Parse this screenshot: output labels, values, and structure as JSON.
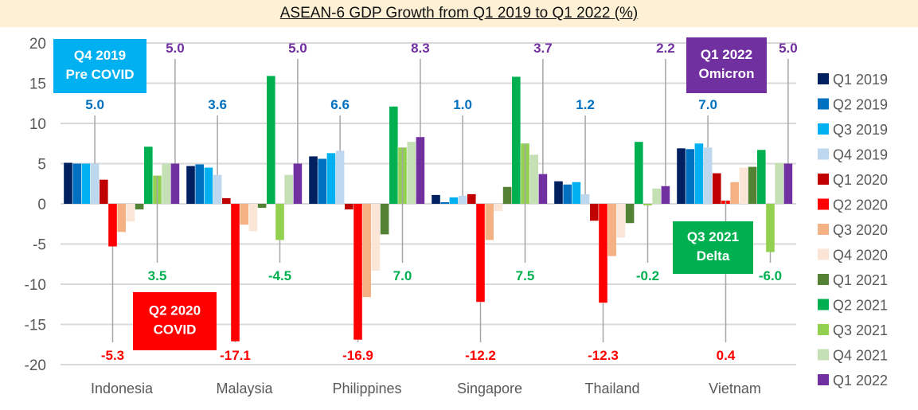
{
  "chart_data": {
    "type": "bar",
    "title": "ASEAN-6 GDP Growth from Q1 2019 to Q1 2022 (%)",
    "xlabel": "",
    "ylabel": "",
    "ylim": [
      -20,
      20
    ],
    "yticks": [
      20,
      15,
      10,
      5,
      0,
      -5,
      -10,
      -15,
      -20
    ],
    "grid": true,
    "legend_position": "right",
    "categories": [
      "Indonesia",
      "Malaysia",
      "Philippines",
      "Singapore",
      "Thailand",
      "Vietnam"
    ],
    "series": [
      {
        "name": "Q1 2019",
        "color": "#002060",
        "values": [
          5.1,
          4.7,
          5.9,
          1.1,
          2.8,
          6.9
        ]
      },
      {
        "name": "Q2 2019",
        "color": "#0070c0",
        "values": [
          5.0,
          4.9,
          5.6,
          0.2,
          2.4,
          6.8
        ]
      },
      {
        "name": "Q3 2019",
        "color": "#00b0f0",
        "values": [
          5.0,
          4.5,
          6.3,
          0.8,
          2.7,
          7.5
        ]
      },
      {
        "name": "Q4 2019",
        "color": "#bdd7ee",
        "values": [
          5.0,
          3.6,
          6.6,
          1.0,
          1.2,
          7.0
        ]
      },
      {
        "name": "Q1 2020",
        "color": "#c00000",
        "values": [
          3.0,
          0.7,
          -0.7,
          1.2,
          -2.1,
          3.8
        ]
      },
      {
        "name": "Q2 2020",
        "color": "#ff0000",
        "values": [
          -5.3,
          -17.1,
          -16.9,
          -12.2,
          -12.3,
          0.4
        ]
      },
      {
        "name": "Q3 2020",
        "color": "#f4b183",
        "values": [
          -3.5,
          -2.6,
          -11.6,
          -4.5,
          -6.5,
          2.7
        ]
      },
      {
        "name": "Q4 2020",
        "color": "#fbe5d6",
        "values": [
          -2.2,
          -3.4,
          -8.3,
          -0.9,
          -4.2,
          4.5
        ]
      },
      {
        "name": "Q1 2021",
        "color": "#548235",
        "values": [
          -0.7,
          -0.5,
          -3.8,
          2.1,
          -2.4,
          4.6
        ]
      },
      {
        "name": "Q2 2021",
        "color": "#00b050",
        "values": [
          7.1,
          15.9,
          12.1,
          15.8,
          7.7,
          6.7
        ]
      },
      {
        "name": "Q3 2021",
        "color": "#92d050",
        "values": [
          3.5,
          -4.5,
          7.0,
          7.5,
          -0.2,
          -6.0
        ]
      },
      {
        "name": "Q4 2021",
        "color": "#c5e0b4",
        "values": [
          5.0,
          3.6,
          7.7,
          6.1,
          1.9,
          5.1
        ]
      },
      {
        "name": "Q1 2022",
        "color": "#7030a0",
        "values": [
          5.0,
          5.0,
          8.3,
          3.7,
          2.2,
          5.0
        ]
      }
    ],
    "data_labels": [
      {
        "series": "Q4 2019",
        "color": "#0070c0",
        "texts": [
          "5.0",
          "3.6",
          "6.6",
          "1.0",
          "1.2",
          "7.0"
        ]
      },
      {
        "series": "Q2 2020",
        "color": "#ff0000",
        "texts": [
          "-5.3",
          "-17.1",
          "-16.9",
          "-12.2",
          "-12.3",
          "0.4"
        ]
      },
      {
        "series": "Q3 2021",
        "color": "#00b050",
        "texts": [
          "3.5",
          "-4.5",
          "7.0",
          "7.5",
          "-0.2",
          "-6.0"
        ]
      },
      {
        "series": "Q1 2022",
        "color": "#7030a0",
        "texts": [
          "5.0",
          "5.0",
          "8.3",
          "3.7",
          "2.2",
          "5.0"
        ]
      }
    ],
    "annotations": [
      {
        "lines": [
          "Q4 2019",
          "Pre COVID"
        ],
        "color": "#00b0f0"
      },
      {
        "lines": [
          "Q2 2020",
          "COVID"
        ],
        "color": "#ff0000"
      },
      {
        "lines": [
          "Q3 2021",
          "Delta"
        ],
        "color": "#00b050"
      },
      {
        "lines": [
          "Q1 2022",
          "Omicron"
        ],
        "color": "#7030a0"
      }
    ]
  }
}
